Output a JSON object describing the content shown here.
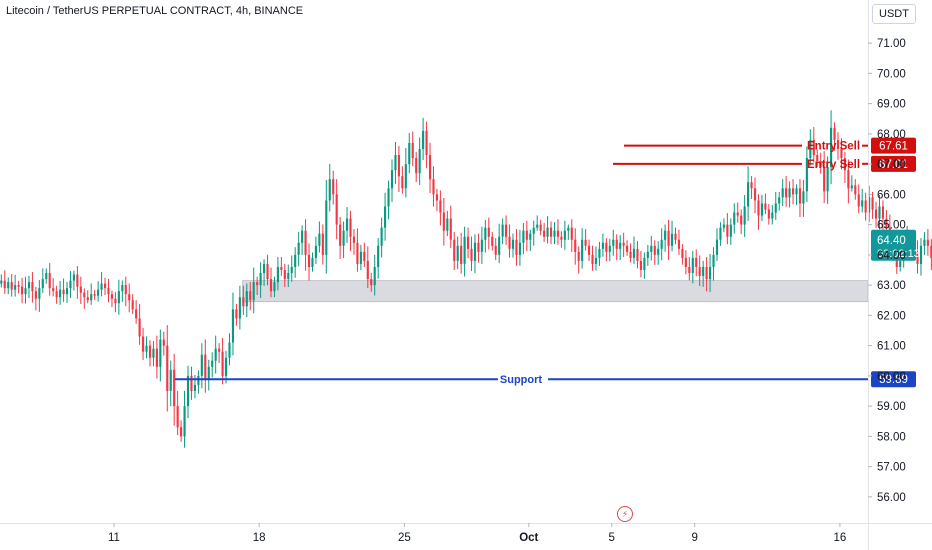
{
  "chart_data": {
    "type": "candlestick",
    "title": "Litecoin / TetherUS PERPETUAL CONTRACT, 4h, BINANCE",
    "currency": "USDT",
    "ylim": [
      55.5,
      71.5
    ],
    "y_ticks": [
      "71.00",
      "70.00",
      "69.00",
      "68.00",
      "67.00",
      "66.00",
      "65.00",
      "64.00",
      "63.00",
      "62.00",
      "61.00",
      "60.00",
      "59.00",
      "58.00",
      "57.00",
      "56.00"
    ],
    "x_ticks": [
      {
        "label": "11",
        "day": 11
      },
      {
        "label": "18",
        "day": 18
      },
      {
        "label": "25",
        "day": 25
      },
      {
        "label": "Oct",
        "day": 31,
        "bold": true
      },
      {
        "label": "5",
        "day": 35
      },
      {
        "label": "9",
        "day": 39
      },
      {
        "label": "16",
        "day": 46
      }
    ],
    "x_start_day": 5.4,
    "days_per_candle": 0.1667,
    "up_color": "#089981",
    "down_color": "#f23645",
    "closes": [
      63.05,
      63.15,
      62.9,
      63.1,
      62.85,
      63.0,
      62.95,
      62.7,
      62.9,
      63.1,
      62.8,
      62.55,
      62.9,
      63.2,
      63.4,
      62.9,
      62.8,
      62.6,
      62.85,
      62.7,
      62.9,
      63.15,
      63.35,
      62.95,
      62.75,
      62.6,
      62.5,
      62.7,
      62.65,
      62.85,
      63.05,
      62.9,
      62.7,
      62.55,
      62.4,
      62.8,
      63.0,
      62.7,
      62.5,
      62.2,
      61.9,
      61.3,
      60.8,
      61.0,
      60.6,
      60.9,
      60.3,
      61.2,
      61.0,
      59.5,
      60.2,
      59.0,
      58.3,
      58.0,
      59.0,
      60.0,
      59.5,
      59.7,
      60.0,
      60.7,
      59.9,
      60.3,
      60.5,
      60.9,
      60.8,
      60.0,
      60.6,
      61.1,
      62.2,
      61.9,
      62.6,
      62.3,
      62.8,
      62.5,
      63.1,
      63.0,
      63.4,
      63.7,
      63.2,
      62.8,
      63.1,
      63.6,
      63.5,
      63.2,
      63.4,
      63.6,
      64.0,
      64.4,
      64.8,
      64.0,
      63.6,
      63.9,
      64.3,
      64.7,
      64.0,
      65.8,
      66.5,
      66.0,
      65.0,
      64.3,
      64.8,
      65.2,
      64.6,
      64.4,
      63.7,
      64.1,
      63.8,
      63.2,
      63.0,
      63.6,
      64.3,
      64.9,
      65.6,
      66.2,
      66.8,
      67.3,
      66.6,
      66.2,
      67.0,
      67.7,
      67.2,
      66.7,
      67.5,
      68.1,
      67.3,
      66.5,
      66.0,
      65.8,
      65.4,
      64.8,
      65.2,
      64.5,
      63.8,
      64.3,
      63.7,
      64.6,
      64.2,
      63.8,
      64.4,
      64.1,
      64.5,
      64.9,
      64.6,
      64.3,
      64.0,
      64.6,
      65.0,
      64.6,
      64.2,
      64.5,
      64.0,
      64.4,
      64.8,
      64.5,
      64.7,
      64.9,
      65.0,
      64.8,
      64.6,
      64.9,
      64.6,
      64.8,
      64.6,
      64.5,
      64.8,
      64.9,
      64.5,
      64.1,
      63.8,
      64.5,
      64.3,
      64.0,
      63.7,
      63.9,
      64.2,
      64.4,
      64.1,
      64.3,
      64.5,
      64.2,
      64.4,
      64.3,
      64.1,
      63.9,
      64.2,
      63.8,
      63.5,
      63.9,
      64.1,
      64.3,
      64.0,
      64.2,
      64.5,
      64.8,
      64.3,
      64.7,
      64.5,
      64.2,
      63.9,
      63.6,
      63.4,
      63.9,
      63.6,
      63.3,
      63.6,
      63.2,
      63.6,
      64.0,
      64.5,
      64.9,
      65.0,
      64.6,
      65.0,
      65.4,
      65.3,
      65.0,
      65.6,
      66.4,
      66.2,
      65.8,
      65.3,
      65.7,
      65.5,
      65.2,
      65.4,
      65.7,
      65.9,
      66.2,
      65.9,
      66.2,
      66.0,
      66.2,
      65.7,
      66.1,
      67.2,
      67.8,
      67.3,
      67.1,
      66.9,
      66.1,
      66.9,
      68.2,
      67.8,
      67.5,
      67.2,
      66.8,
      66.2,
      66.3,
      66.0,
      65.6,
      65.8,
      65.4,
      65.9,
      65.5,
      65.2,
      65.6,
      65.2,
      64.9,
      64.4,
      64.2,
      63.6,
      63.8,
      64.2,
      64.6,
      64.3,
      64.1,
      63.7,
      64.3,
      64.5,
      64.3,
      63.9,
      64.4,
      64.7,
      64.6,
      64.4,
      64.6,
      64.3,
      64.8,
      64.5,
      64.2,
      64.4
    ],
    "support_level": 59.89,
    "support_label": "Support",
    "entry_levels": [
      {
        "label": "Entry Sell",
        "value": 67.61,
        "display": "67.61"
      },
      {
        "label": "Entry Sell",
        "value": 67.01,
        "display": "67.01"
      }
    ],
    "support_zone": [
      62.45,
      63.15
    ],
    "support_zone_start_day": 17.2,
    "current_price": "64.40",
    "countdown": "02:02:13",
    "colors": {
      "entry": "#d10f0f",
      "support": "#1c44c4",
      "current_price": "#12989a",
      "zone": "#d9dbe0",
      "zone_border": "#a9adb6",
      "axis_text": "#131722",
      "axis_border": "#e0e3eb"
    }
  }
}
